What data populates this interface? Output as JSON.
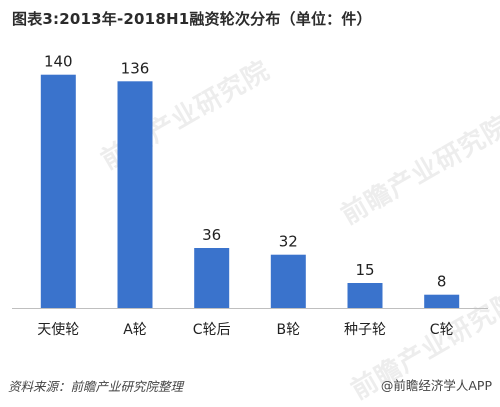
{
  "title": "图表3:2013年-2018H1融资轮次分布（单位：件）",
  "footer": {
    "source": "资料来源：前瞻产业研究院整理",
    "credit": "@前瞻经济学人APP"
  },
  "watermark": "前瞻产业研究院",
  "colors": {
    "bar": "#3a73cc",
    "axis": "#bfbfbf"
  },
  "chart_data": {
    "type": "bar",
    "title": "图表3:2013年-2018H1融资轮次分布（单位：件）",
    "categories": [
      "天使轮",
      "A轮",
      "C轮后",
      "B轮",
      "种子轮",
      "C轮"
    ],
    "values": [
      140,
      136,
      36,
      32,
      15,
      8
    ],
    "ylim": [
      0,
      150
    ],
    "grid": false,
    "legend": "none"
  }
}
